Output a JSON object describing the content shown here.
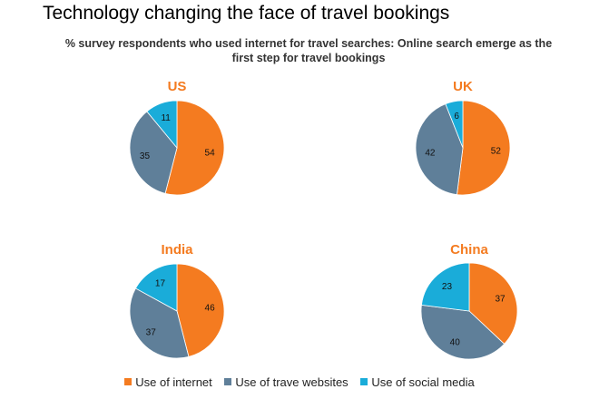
{
  "title": "Technology changing the face of travel bookings",
  "subtitle_line1": "% survey respondents who used internet for travel searches: Online search emerge as the",
  "subtitle_line2": "first step for travel bookings",
  "colors": {
    "internet": "#f47b20",
    "websites": "#5f7f99",
    "social": "#1aacd9",
    "chart_title": "#f47b20"
  },
  "legend": [
    {
      "label": "Use of internet",
      "color": "#f47b20"
    },
    {
      "label": "Use of trave websites",
      "color": "#5f7f99"
    },
    {
      "label": "Use of social media",
      "color": "#1aacd9"
    }
  ],
  "chart_data": [
    {
      "type": "pie",
      "title": "US",
      "categories": [
        "Use of internet",
        "Use of trave websites",
        "Use of social media"
      ],
      "values": [
        54,
        35,
        11
      ]
    },
    {
      "type": "pie",
      "title": "UK",
      "categories": [
        "Use of internet",
        "Use of trave websites",
        "Use of social media"
      ],
      "values": [
        52,
        42,
        6
      ]
    },
    {
      "type": "pie",
      "title": "India",
      "categories": [
        "Use of internet",
        "Use of trave websites",
        "Use of social media"
      ],
      "values": [
        46,
        37,
        17
      ]
    },
    {
      "type": "pie",
      "title": "China",
      "categories": [
        "Use of internet",
        "Use of trave websites",
        "Use of social media"
      ],
      "values": [
        37,
        40,
        23
      ]
    }
  ]
}
